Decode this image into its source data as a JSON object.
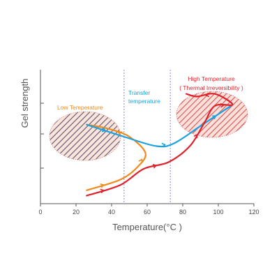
{
  "chart_data": {
    "type": "line",
    "title": "",
    "xlabel": "Temperature(°C )",
    "ylabel": "Gel strength",
    "xlim": [
      0,
      120
    ],
    "x_ticks": [
      "0",
      "20",
      "40",
      "60",
      "80",
      "100",
      "120"
    ],
    "y_ticks_labeled": false,
    "grid": false,
    "annotations": {
      "low": "Low Temperature",
      "transfer_1": "Transfer",
      "transfer_2": "temperature",
      "high_1": "High Temperature",
      "high_2": "( Thermal Irreversibility )"
    },
    "reference_lines_x": [
      47,
      73
    ],
    "series": [
      {
        "color": "#f08a1c",
        "points": [
          [
            26,
            0.1
          ],
          [
            45,
            0.18
          ],
          [
            55,
            0.28
          ],
          [
            59,
            0.38
          ],
          [
            50,
            0.5
          ],
          [
            38,
            0.56
          ],
          [
            26,
            0.59
          ]
        ]
      },
      {
        "color": "#1aa2e0",
        "points": [
          [
            26,
            0.59
          ],
          [
            47,
            0.5
          ],
          [
            65,
            0.43
          ],
          [
            75,
            0.45
          ],
          [
            90,
            0.58
          ],
          [
            107,
            0.73
          ]
        ]
      },
      {
        "color": "#e0202a",
        "points": [
          [
            26,
            0.06
          ],
          [
            45,
            0.14
          ],
          [
            58,
            0.26
          ],
          [
            72,
            0.31
          ],
          [
            84,
            0.43
          ],
          [
            92,
            0.6
          ],
          [
            98,
            0.73
          ],
          [
            108,
            0.74
          ],
          [
            98,
            0.82
          ],
          [
            88,
            0.8
          ],
          [
            82,
            0.82
          ]
        ]
      }
    ],
    "colors": {
      "axis": "#555555",
      "reference_line": "#7b7be0",
      "low_zone": "#f08a1c",
      "high_zone": "#e0202a"
    }
  }
}
